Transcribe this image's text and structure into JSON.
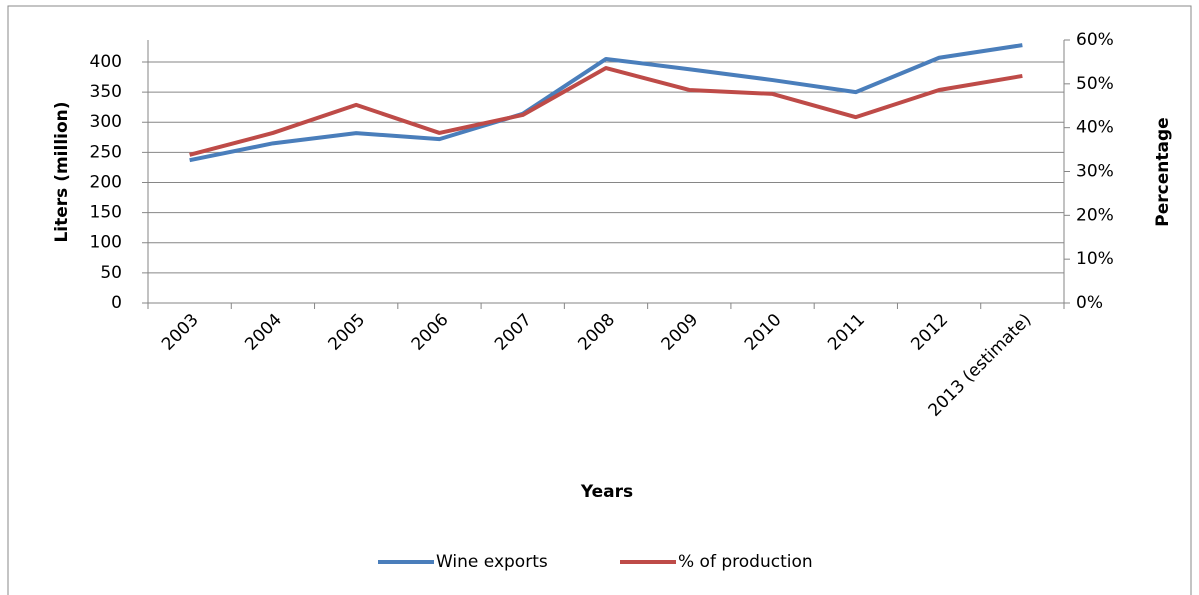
{
  "chart_data": {
    "type": "line",
    "x_label": "Years",
    "y_label": "Liters (million)",
    "y2_label": "Percentage",
    "categories": [
      "2003",
      "2004",
      "2005",
      "2006",
      "2007",
      "2008",
      "2009",
      "2010",
      "2011",
      "2012",
      "2013 (estimate)"
    ],
    "series": [
      {
        "name": "Wine exports",
        "color": "#4a7ebb",
        "values": [
          237,
          265,
          282,
          272,
          314,
          405,
          388,
          370,
          350,
          407,
          428
        ]
      },
      {
        "name": "% of production",
        "color": "#be4b48",
        "axis": "y2",
        "values": [
          33.8,
          38.8,
          45.2,
          38.8,
          42.9,
          53.6,
          48.6,
          47.7,
          42.4,
          48.6,
          51.8
        ]
      }
    ],
    "ylim": [
      0,
      436.5
    ],
    "yticks": [
      0,
      50,
      100,
      150,
      200,
      250,
      300,
      350,
      400
    ],
    "y2lim": [
      0,
      60
    ],
    "y2ticks": [
      {
        "value": 0,
        "label": "0%"
      },
      {
        "value": 10,
        "label": "10%"
      },
      {
        "value": 20,
        "label": "20%"
      },
      {
        "value": 30,
        "label": "30%"
      },
      {
        "value": 40,
        "label": "40%"
      },
      {
        "value": 50,
        "label": "50%"
      },
      {
        "value": 60,
        "label": "60%"
      }
    ],
    "grid": true,
    "legend": "bottom"
  }
}
